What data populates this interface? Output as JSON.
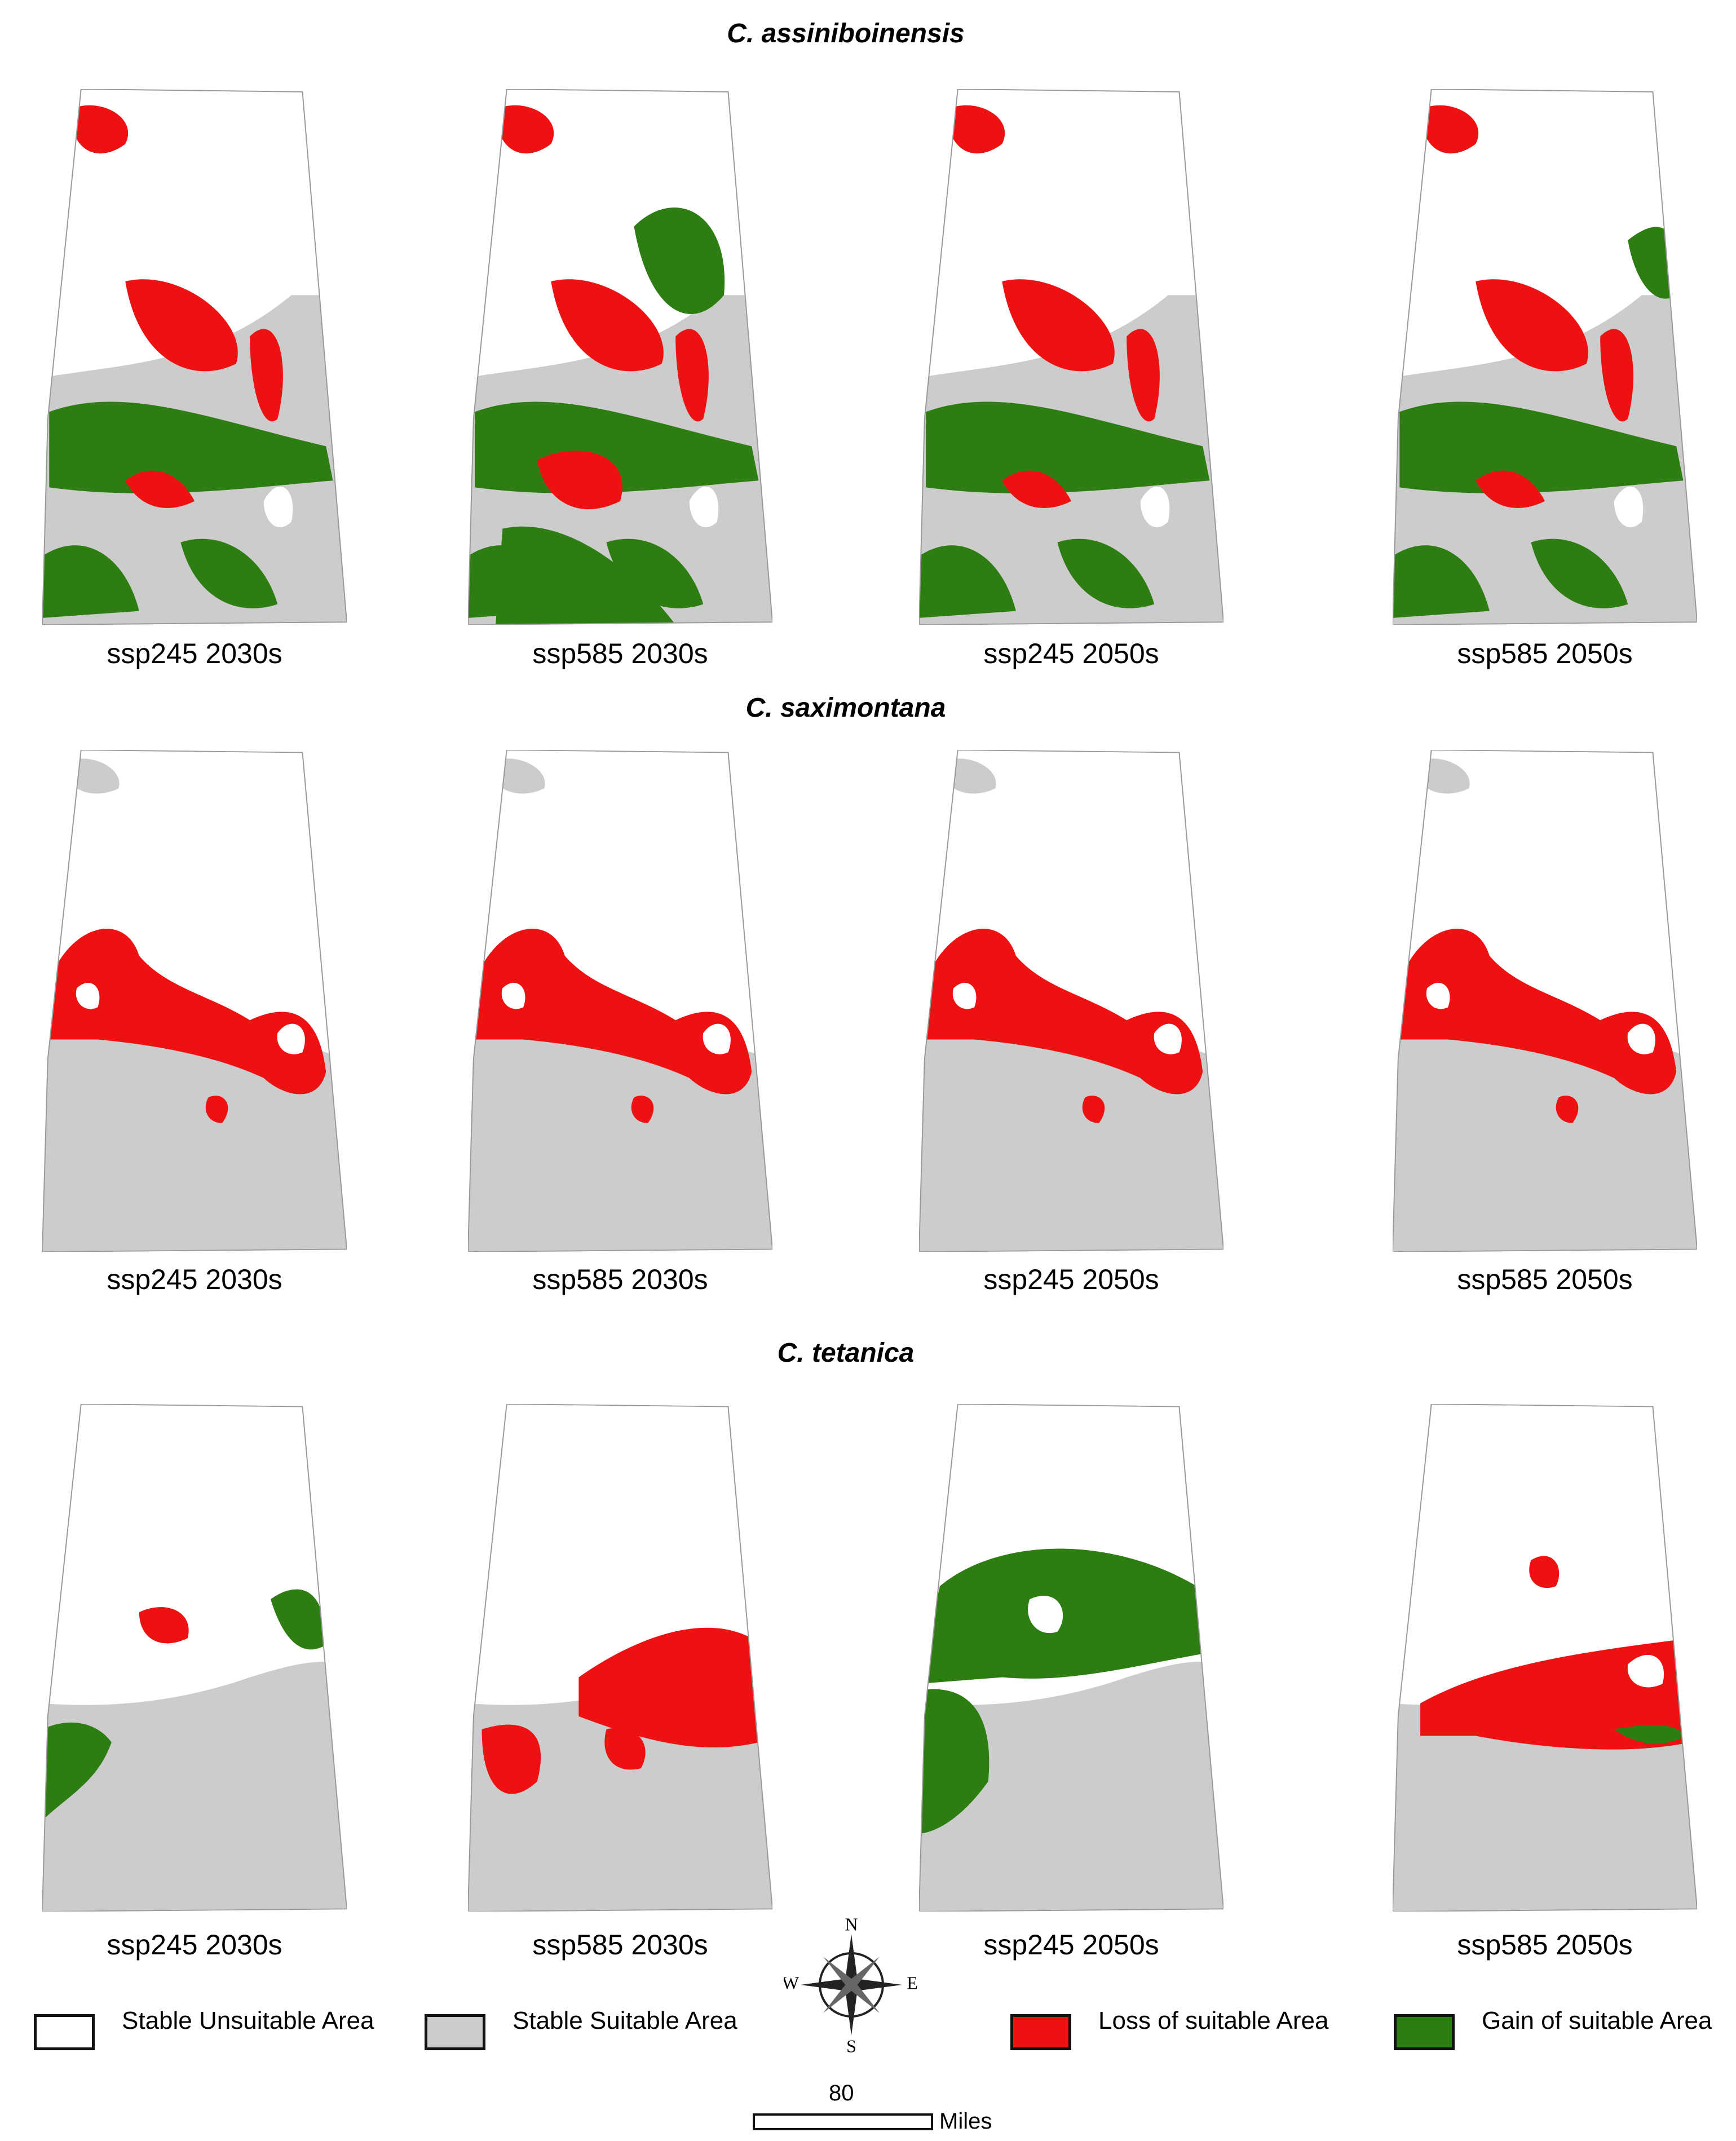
{
  "species": [
    {
      "title": "C. assiniboinensis",
      "maps": [
        {
          "label": "ssp245 2030s"
        },
        {
          "label": "ssp585 2030s"
        },
        {
          "label": "ssp245 2050s"
        },
        {
          "label": "ssp585 2050s"
        }
      ]
    },
    {
      "title": "C. saximontana",
      "maps": [
        {
          "label": "ssp245 2030s"
        },
        {
          "label": "ssp585 2030s"
        },
        {
          "label": "ssp245 2050s"
        },
        {
          "label": "ssp585 2050s"
        }
      ]
    },
    {
      "title": "C. tetanica",
      "maps": [
        {
          "label": "ssp245 2030s"
        },
        {
          "label": "ssp585 2030s"
        },
        {
          "label": "ssp245 2050s"
        },
        {
          "label": "ssp585 2050s"
        }
      ]
    }
  ],
  "legend": [
    {
      "label": "Stable Unsuitable Area",
      "color": "#ffffff"
    },
    {
      "label": "Stable Suitable Area",
      "color": "#cccccc"
    },
    {
      "label": "Loss of suitable Area",
      "color": "#ee1111"
    },
    {
      "label": "Gain of suitable Area",
      "color": "#2e7d12"
    }
  ],
  "compass": {
    "n": "N",
    "e": "E",
    "s": "S",
    "w": "W"
  },
  "scale_bar": {
    "value": "80",
    "unit": "Miles"
  }
}
